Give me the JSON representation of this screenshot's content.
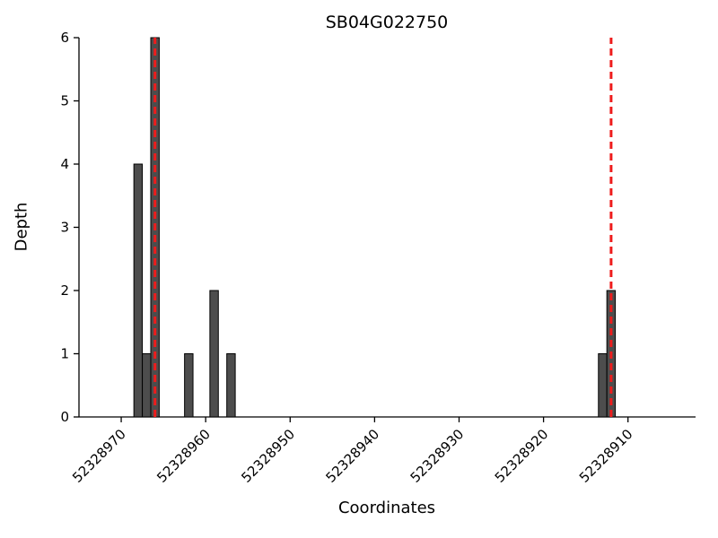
{
  "chart_data": {
    "type": "bar",
    "title": "SB04G022750",
    "xlabel": "Coordinates",
    "ylabel": "Depth",
    "x_axis_reversed": true,
    "x_range_left": 52328975,
    "x_range_right": 52328902,
    "ylim": [
      0,
      6
    ],
    "x_ticks": [
      52328970,
      52328960,
      52328950,
      52328940,
      52328930,
      52328920,
      52328910
    ],
    "y_ticks": [
      0,
      1,
      2,
      3,
      4,
      5,
      6
    ],
    "bars": [
      {
        "coordinate": 52328968,
        "depth": 4
      },
      {
        "coordinate": 52328967,
        "depth": 1
      },
      {
        "coordinate": 52328966,
        "depth": 6
      },
      {
        "coordinate": 52328962,
        "depth": 1
      },
      {
        "coordinate": 52328959,
        "depth": 2
      },
      {
        "coordinate": 52328957,
        "depth": 1
      },
      {
        "coordinate": 52328913,
        "depth": 1
      },
      {
        "coordinate": 52328912,
        "depth": 2
      }
    ],
    "red_dashed_lines": [
      52328966,
      52328912
    ],
    "bar_color": "#4d4d4d",
    "bar_edge_color": "#000000",
    "dashed_line_color": "#ee1c1c",
    "axis_color": "#000000",
    "grid": false,
    "legend": null
  }
}
